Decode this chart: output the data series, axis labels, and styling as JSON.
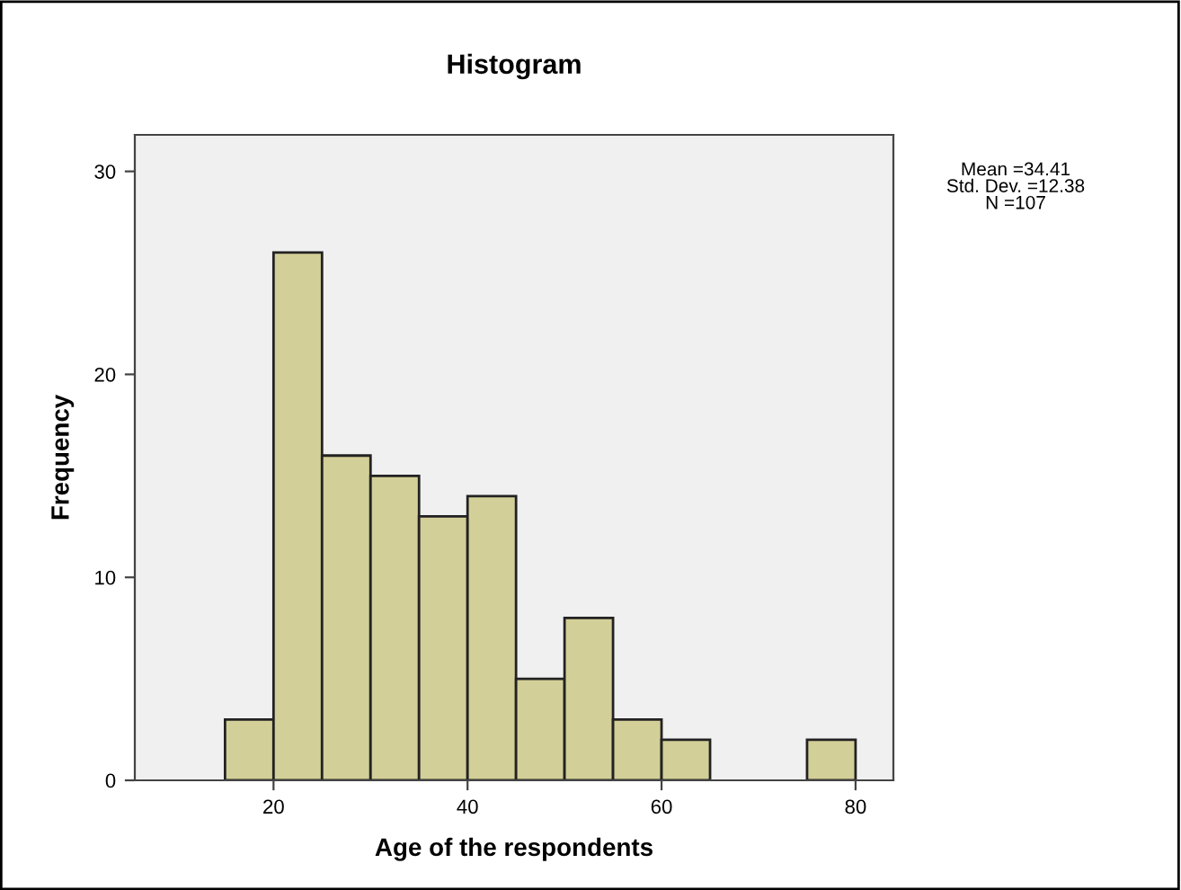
{
  "chart_data": {
    "type": "histogram",
    "title": "Histogram",
    "xlabel": "Age of the respondents",
    "ylabel": "Frequency",
    "bins": [
      15,
      20,
      25,
      30,
      35,
      40,
      45,
      50,
      55,
      60,
      65,
      70,
      75,
      80
    ],
    "values": [
      3,
      26,
      16,
      15,
      13,
      14,
      5,
      8,
      3,
      2,
      0,
      0,
      2
    ],
    "color": "#d3cf98",
    "xlim": [
      5.7,
      83.9
    ],
    "ylim": [
      0,
      31.8
    ],
    "xticks": [
      20,
      40,
      60,
      80
    ],
    "yticks": [
      0,
      10,
      20,
      30
    ],
    "grid": false,
    "legend": false,
    "annotations": [
      "Mean =34.41\nStd. Dev. =12.38\nN =107"
    ]
  }
}
